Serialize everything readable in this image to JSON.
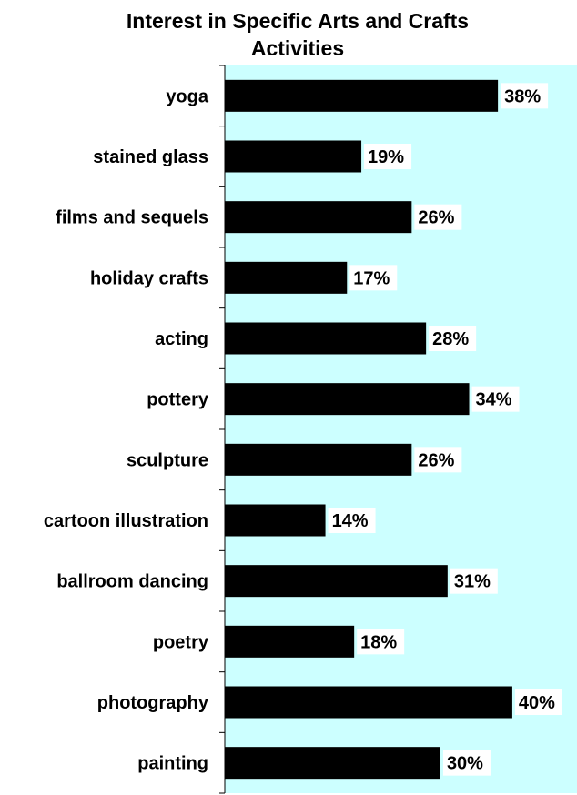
{
  "chart_data": {
    "type": "bar",
    "orientation": "horizontal",
    "title": "Interest in Specific Arts and Crafts Activities",
    "title_lines": [
      "Interest in Specific Arts and Crafts",
      "Activities"
    ],
    "categories": [
      "yoga",
      "stained glass",
      "films and sequels",
      "holiday crafts",
      "acting",
      "pottery",
      "sculpture",
      "cartoon illustration",
      "ballroom dancing",
      "poetry",
      "photography",
      "painting"
    ],
    "values": [
      38,
      19,
      26,
      17,
      28,
      34,
      26,
      14,
      31,
      18,
      40,
      30
    ],
    "value_labels": [
      "38%",
      "19%",
      "26%",
      "17%",
      "28%",
      "34%",
      "26%",
      "14%",
      "31%",
      "18%",
      "40%",
      "30%"
    ],
    "xlim": [
      0,
      49
    ],
    "grid": false,
    "legend": "none",
    "colors": {
      "bar": "#000000",
      "plot_background": "#ccffff",
      "label_background": "#ffffff"
    }
  }
}
